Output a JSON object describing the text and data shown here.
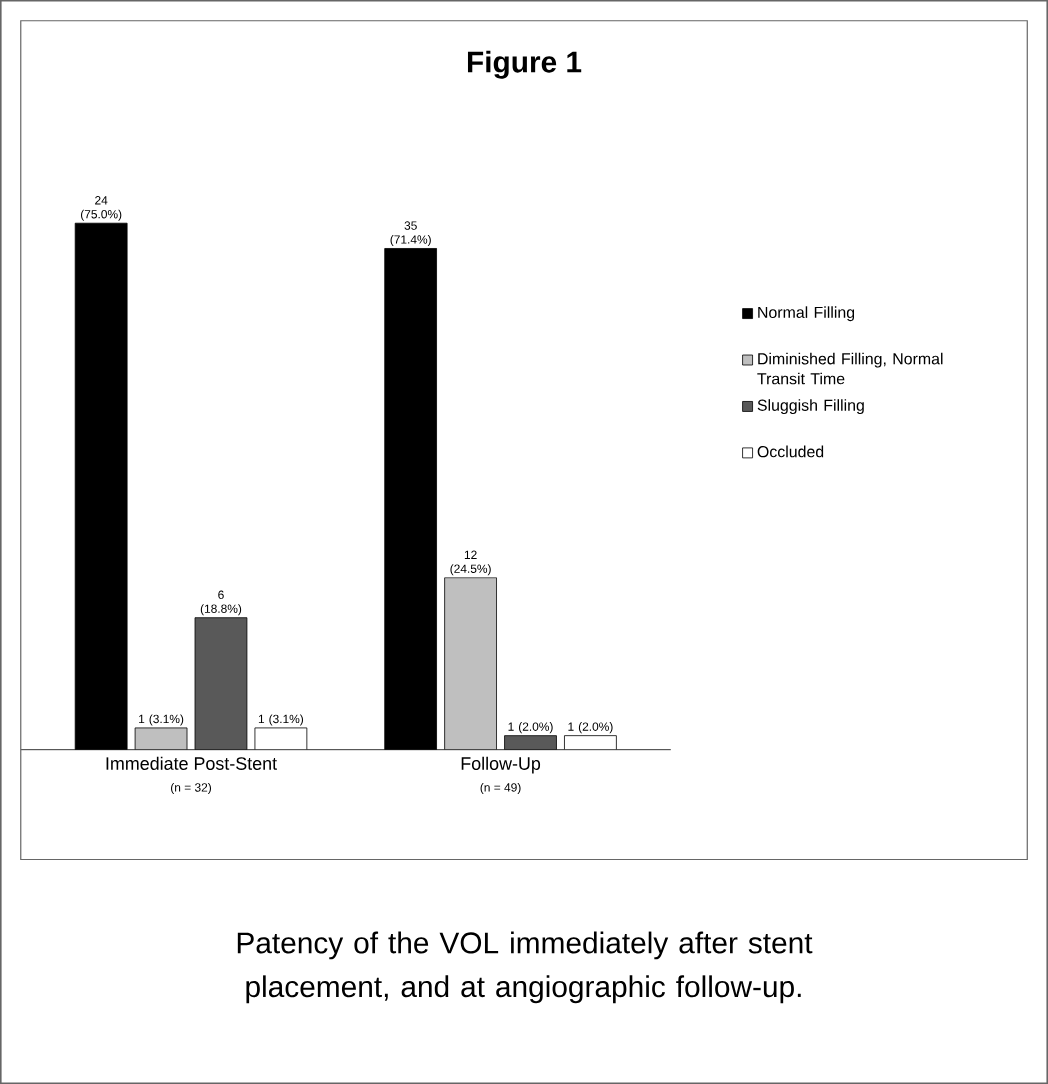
{
  "chart_data": {
    "type": "bar",
    "title": "Figure 1",
    "categories": [
      "Immediate Post-Stent",
      "Follow-Up"
    ],
    "series": [
      {
        "name": "Normal Filling",
        "color": "#000000",
        "values": [
          75.0,
          71.4
        ],
        "value_labels": [
          "24 (75.0%)",
          "35 (71.4%)"
        ]
      },
      {
        "name": "Diminished Filling, Normal Transit Time",
        "color": "#bfbfbf",
        "values": [
          3.1,
          24.5
        ],
        "value_labels": [
          "1 (3.1%)",
          "12 (24.5%)"
        ]
      },
      {
        "name": "Sluggish Filling",
        "color": "#595959",
        "values": [
          18.8,
          2.0
        ],
        "value_labels": [
          "6 (18.8%)",
          "1 (2.0%)"
        ]
      },
      {
        "name": "Occluded",
        "color": "#ffffff",
        "values": [
          3.1,
          2.0
        ],
        "value_labels": [
          "1 (3.1%)",
          "1 (2.0%)"
        ]
      }
    ],
    "annotations": [
      "(n = 32)",
      "(n = 49)",
      "Patency of the VOL immediately after stent placement, and at angiographic follow-up."
    ],
    "legend": "right"
  }
}
